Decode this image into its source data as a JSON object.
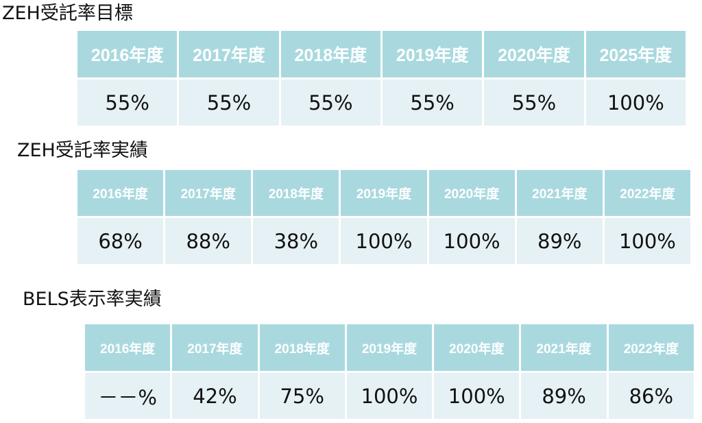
{
  "sections": [
    {
      "title": "ZEH受託率目標",
      "years": [
        "2016年度",
        "2017年度",
        "2018年度",
        "2019年度",
        "2020年度",
        "2025年度"
      ],
      "values": [
        "55%",
        "55%",
        "55%",
        "55%",
        "55%",
        "100%"
      ]
    },
    {
      "title": "ZEH受託率実績",
      "years": [
        "2016年度",
        "2017年度",
        "2018年度",
        "2019年度",
        "2020年度",
        "2021年度",
        "2022年度"
      ],
      "values": [
        "68%",
        "88%",
        "38%",
        "100%",
        "100%",
        "89%",
        "100%"
      ]
    },
    {
      "title": "BELS表示率実績",
      "years": [
        "2016年度",
        "2017年度",
        "2018年度",
        "2019年度",
        "2020年度",
        "2021年度",
        "2022年度"
      ],
      "values": [
        "－－%",
        "42%",
        "75%",
        "100%",
        "100%",
        "89%",
        "86%"
      ]
    }
  ],
  "colors": {
    "header_bg": "#a9d9df",
    "header_text": "#ffffff",
    "cell_bg": "#e5f1f4",
    "text": "#111111"
  }
}
